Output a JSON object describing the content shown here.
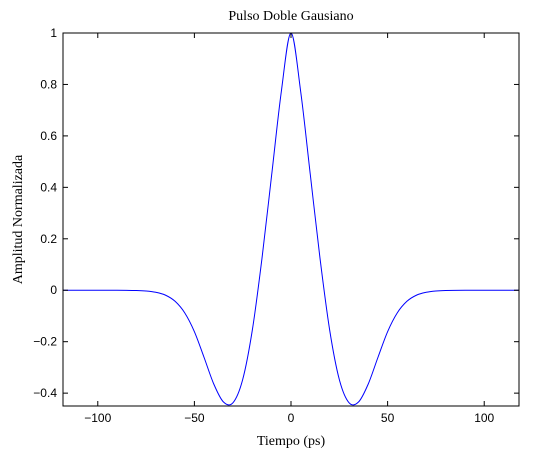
{
  "chart_data": {
    "type": "line",
    "title": "Pulso Doble Gausiano",
    "xlabel": "Tiempo (ps)",
    "ylabel": "Amplitud Normalizada",
    "xlim": [
      -118,
      118
    ],
    "ylim": [
      -0.45,
      1
    ],
    "xticks": [
      -100,
      -50,
      0,
      50,
      100
    ],
    "xtick_labels": [
      "−100",
      "−50",
      "0",
      "50",
      "100"
    ],
    "yticks": [
      -0.4,
      -0.2,
      0,
      0.2,
      0.4,
      0.6,
      0.8,
      1
    ],
    "ytick_labels": [
      "−0.4",
      "−0.2",
      "0",
      "0.2",
      "0.4",
      "0.6",
      "0.8",
      "1"
    ],
    "grid": false,
    "series": [
      {
        "color": "#0000ff",
        "x": [
          -118,
          -110,
          -100,
          -90,
          -80,
          -75,
          -70,
          -65,
          -60,
          -55,
          -50,
          -45,
          -40,
          -35,
          -30,
          -25,
          -20,
          -15,
          -10,
          -5,
          0,
          5,
          10,
          15,
          20,
          25,
          30,
          35,
          40,
          45,
          50,
          55,
          60,
          65,
          70,
          75,
          80,
          90,
          100,
          110,
          118
        ],
        "y": [
          0,
          0,
          0,
          0,
          -0.001,
          -0.003,
          -0.008,
          -0.019,
          -0.043,
          -0.088,
          -0.161,
          -0.261,
          -0.364,
          -0.434,
          -0.437,
          -0.347,
          -0.154,
          0.125,
          0.449,
          0.773,
          1,
          0.773,
          0.449,
          0.125,
          -0.154,
          -0.347,
          -0.437,
          -0.434,
          -0.364,
          -0.261,
          -0.161,
          -0.088,
          -0.043,
          -0.019,
          -0.008,
          -0.003,
          -0.001,
          0,
          0,
          0,
          0
        ]
      }
    ]
  }
}
